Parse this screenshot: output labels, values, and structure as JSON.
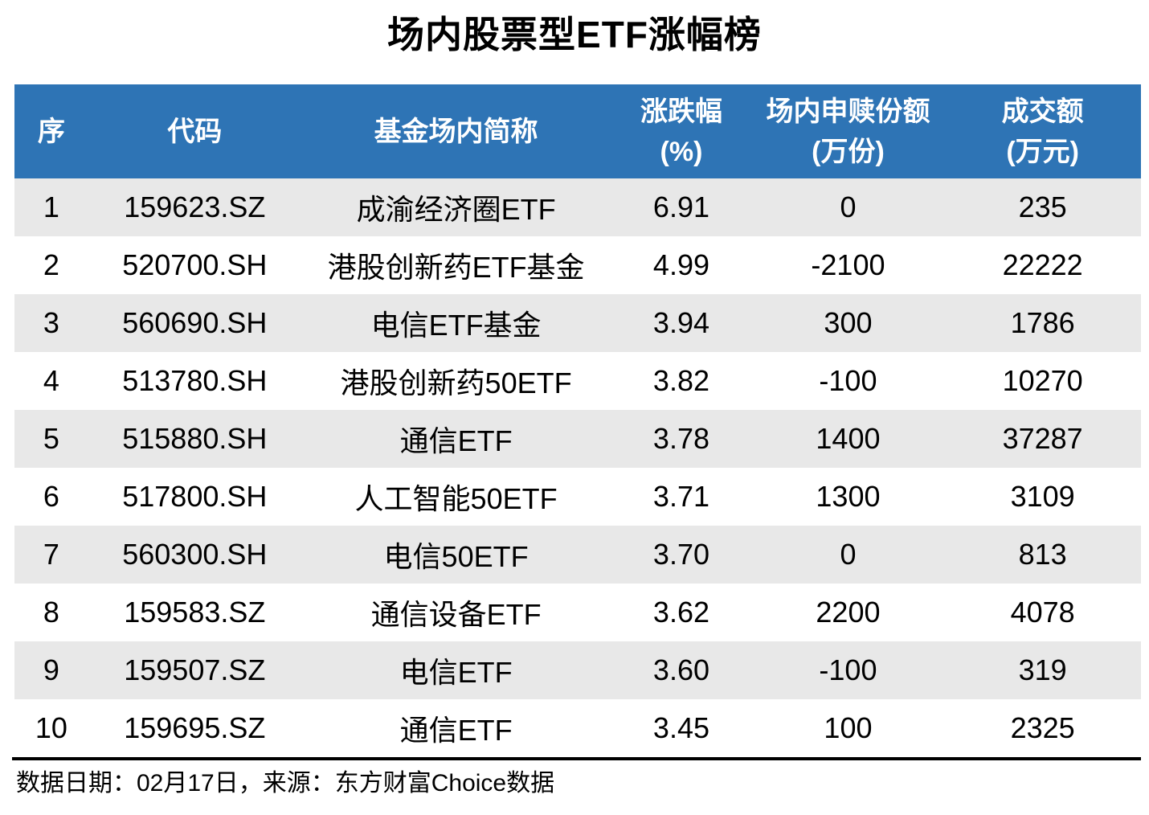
{
  "title": "场内股票型ETF涨幅榜",
  "colors": {
    "header_bg": "#2e74b5",
    "header_text": "#ffffff",
    "row_alt_bg": "#e8e8e8",
    "row_bg": "#ffffff",
    "footer_rule": "#000000"
  },
  "table": {
    "headers": {
      "no": "序",
      "code": "代码",
      "name": "基金场内简称",
      "change_l1": "涨跌幅",
      "change_l2": "(%)",
      "shares_l1": "场内申赎份额",
      "shares_l2": "(万份)",
      "turnover_l1": "成交额",
      "turnover_l2": "(万元)"
    },
    "rows": [
      {
        "no": "1",
        "code": "159623.SZ",
        "name": "成渝经济圈ETF",
        "change": "6.91",
        "shares": "0",
        "turnover": "235"
      },
      {
        "no": "2",
        "code": "520700.SH",
        "name": "港股创新药ETF基金",
        "change": "4.99",
        "shares": "-2100",
        "turnover": "22222"
      },
      {
        "no": "3",
        "code": "560690.SH",
        "name": "电信ETF基金",
        "change": "3.94",
        "shares": "300",
        "turnover": "1786"
      },
      {
        "no": "4",
        "code": "513780.SH",
        "name": "港股创新药50ETF",
        "change": "3.82",
        "shares": "-100",
        "turnover": "10270"
      },
      {
        "no": "5",
        "code": "515880.SH",
        "name": "通信ETF",
        "change": "3.78",
        "shares": "1400",
        "turnover": "37287"
      },
      {
        "no": "6",
        "code": "517800.SH",
        "name": "人工智能50ETF",
        "change": "3.71",
        "shares": "1300",
        "turnover": "3109"
      },
      {
        "no": "7",
        "code": "560300.SH",
        "name": "电信50ETF",
        "change": "3.70",
        "shares": "0",
        "turnover": "813"
      },
      {
        "no": "8",
        "code": "159583.SZ",
        "name": "通信设备ETF",
        "change": "3.62",
        "shares": "2200",
        "turnover": "4078"
      },
      {
        "no": "9",
        "code": "159507.SZ",
        "name": "电信ETF",
        "change": "3.60",
        "shares": "-100",
        "turnover": "319"
      },
      {
        "no": "10",
        "code": "159695.SZ",
        "name": "通信ETF",
        "change": "3.45",
        "shares": "100",
        "turnover": "2325"
      }
    ]
  },
  "footer": {
    "text": "数据日期：02月17日，来源：东方财富Choice数据"
  },
  "chart_data": {
    "type": "table",
    "title": "场内股票型ETF涨幅榜",
    "columns": [
      "序",
      "代码",
      "基金场内简称",
      "涨跌幅(%)",
      "场内申赎份额(万份)",
      "成交额(万元)"
    ],
    "rows": [
      [
        1,
        "159623.SZ",
        "成渝经济圈ETF",
        6.91,
        0,
        235
      ],
      [
        2,
        "520700.SH",
        "港股创新药ETF基金",
        4.99,
        -2100,
        22222
      ],
      [
        3,
        "560690.SH",
        "电信ETF基金",
        3.94,
        300,
        1786
      ],
      [
        4,
        "513780.SH",
        "港股创新药50ETF",
        3.82,
        -100,
        10270
      ],
      [
        5,
        "515880.SH",
        "通信ETF",
        3.78,
        1400,
        37287
      ],
      [
        6,
        "517800.SH",
        "人工智能50ETF",
        3.71,
        1300,
        3109
      ],
      [
        7,
        "560300.SH",
        "电信50ETF",
        3.7,
        0,
        813
      ],
      [
        8,
        "159583.SZ",
        "通信设备ETF",
        3.62,
        2200,
        4078
      ],
      [
        9,
        "159507.SZ",
        "电信ETF",
        3.6,
        -100,
        319
      ],
      [
        10,
        "159695.SZ",
        "通信ETF",
        3.45,
        100,
        2325
      ]
    ],
    "source_note": "数据日期：02月17日，来源：东方财富Choice数据"
  }
}
